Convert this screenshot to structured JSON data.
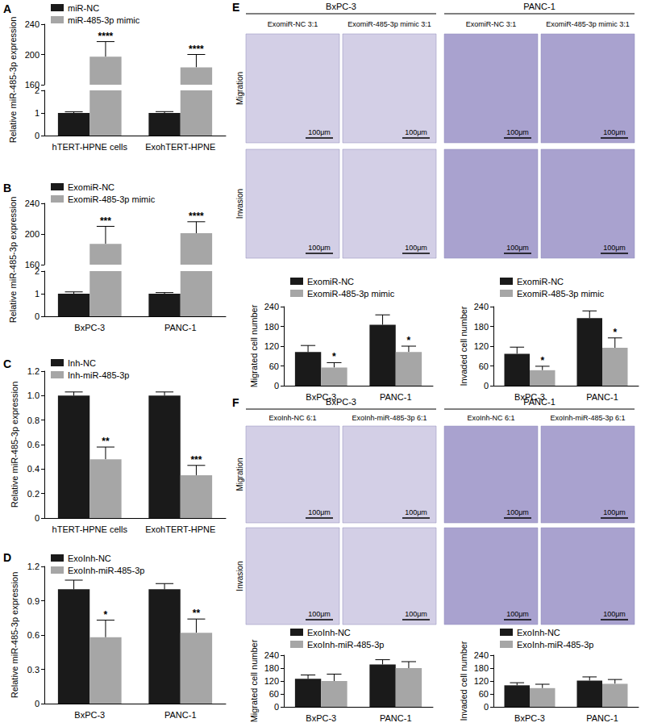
{
  "chart_data": [
    {
      "type": "bar",
      "panel": "A",
      "y_title": "Relative miR-485-3p expression",
      "categories": [
        "hTERT-HPNE cells",
        "ExohTERT-HPNE"
      ],
      "series": [
        {
          "name": "miR-NC",
          "color": "#1a1a1a",
          "values": [
            1.0,
            1.0
          ],
          "errors": [
            0.05,
            0.06
          ]
        },
        {
          "name": "miR-485-3p mimic",
          "color": "#a6a6a6",
          "values": [
            197,
            183
          ],
          "errors": [
            20,
            17
          ],
          "significance": [
            "****",
            "****"
          ]
        }
      ],
      "ylim": [
        0,
        240
      ],
      "ybreak": [
        2,
        160
      ],
      "yticks": [
        0,
        1,
        2,
        160,
        200,
        240
      ],
      "legend": "upper left"
    },
    {
      "type": "bar",
      "panel": "B",
      "y_title": "Relative miR-485-3p expression",
      "categories": [
        "BxPC-3",
        "PANC-1"
      ],
      "series": [
        {
          "name": "ExomiR-NC",
          "color": "#1a1a1a",
          "values": [
            1.0,
            1.0
          ],
          "errors": [
            0.08,
            0.05
          ]
        },
        {
          "name": "ExomiR-485-3p mimic",
          "color": "#a6a6a6",
          "values": [
            187,
            201
          ],
          "errors": [
            23,
            15
          ],
          "significance": [
            "***",
            "****"
          ]
        }
      ],
      "ylim": [
        0,
        240
      ],
      "ybreak": [
        2,
        160
      ],
      "yticks": [
        0,
        1,
        2,
        160,
        200,
        240
      ],
      "legend": "upper left"
    },
    {
      "type": "bar",
      "panel": "C",
      "y_title": "Relative miR-485-3p expression",
      "categories": [
        "hTERT-HPNE cells",
        "ExohTERT-HPNE"
      ],
      "series": [
        {
          "name": "Inh-NC",
          "color": "#1a1a1a",
          "values": [
            1.0,
            1.0
          ],
          "errors": [
            0.03,
            0.03
          ]
        },
        {
          "name": "Inh-miR-485-3p",
          "color": "#a6a6a6",
          "values": [
            0.48,
            0.35
          ],
          "errors": [
            0.1,
            0.08
          ],
          "significance": [
            "**",
            "***"
          ]
        }
      ],
      "ylim": [
        0,
        1.2
      ],
      "yticks": [
        0,
        0.2,
        0.4,
        0.6,
        0.8,
        {
          "value": 1,
          "label": "1.0"
        },
        1.2
      ],
      "legend": "upper left"
    },
    {
      "type": "bar",
      "panel": "D",
      "y_title": "Relative miR-485-3p expression",
      "categories": [
        "BxPC-3",
        "PANC-1"
      ],
      "series": [
        {
          "name": "ExoInh-NC",
          "color": "#1a1a1a",
          "values": [
            1.0,
            1.0
          ],
          "errors": [
            0.08,
            0.05
          ]
        },
        {
          "name": "ExoInh-miR-485-3p",
          "color": "#a6a6a6",
          "values": [
            0.58,
            0.62
          ],
          "errors": [
            0.15,
            0.12
          ],
          "significance": [
            "*",
            "**"
          ]
        }
      ],
      "ylim": [
        0,
        1.2
      ],
      "yticks": [
        0,
        0.3,
        0.6,
        0.9,
        1.2
      ],
      "legend": "upper left"
    },
    {
      "type": "bar",
      "y_title": "Migrated cell number",
      "categories": [
        "BxPC-3",
        "PANC-1"
      ],
      "series": [
        {
          "name": "ExomiR-NC",
          "color": "#1a1a1a",
          "values": [
            102,
            185
          ],
          "errors": [
            20,
            30
          ]
        },
        {
          "name": "ExomiR-485-3p mimic",
          "color": "#a6a6a6",
          "values": [
            55,
            102
          ],
          "errors": [
            15,
            18
          ],
          "significance": [
            "*",
            "*"
          ]
        }
      ],
      "ylim": [
        0,
        240
      ],
      "yticks": [
        0,
        60,
        120,
        180,
        240
      ],
      "legend": "upper left"
    },
    {
      "type": "bar",
      "y_title": "Invaded cell number",
      "categories": [
        "BxPC-3",
        "PANC-1"
      ],
      "series": [
        {
          "name": "ExomiR-NC",
          "color": "#1a1a1a",
          "values": [
            97,
            205
          ],
          "errors": [
            20,
            22
          ]
        },
        {
          "name": "ExomiR-485-3p mimic",
          "color": "#a6a6a6",
          "values": [
            47,
            115
          ],
          "errors": [
            12,
            30
          ],
          "significance": [
            "*",
            "*"
          ]
        }
      ],
      "ylim": [
        0,
        240
      ],
      "yticks": [
        0,
        60,
        120,
        180,
        240
      ],
      "legend": "upper left"
    },
    {
      "type": "bar",
      "y_title": "Migrated cell number",
      "categories": [
        "BxPC-3",
        "PANC-1"
      ],
      "series": [
        {
          "name": "ExoInh-NC",
          "color": "#1a1a1a",
          "values": [
            130,
            197
          ],
          "errors": [
            18,
            22
          ]
        },
        {
          "name": "ExoInh-miR-485-3p",
          "color": "#a6a6a6",
          "values": [
            120,
            180
          ],
          "errors": [
            32,
            30
          ]
        }
      ],
      "ylim": [
        0,
        240
      ],
      "yticks": [
        0,
        60,
        120,
        180,
        240
      ],
      "legend": "upper left"
    },
    {
      "type": "bar",
      "y_title": "Invaded cell number",
      "categories": [
        "BxPC-3",
        "PANC-1"
      ],
      "series": [
        {
          "name": "ExoInh-NC",
          "color": "#1a1a1a",
          "values": [
            100,
            122
          ],
          "errors": [
            12,
            17
          ]
        },
        {
          "name": "ExoInh-miR-485-3p",
          "color": "#a6a6a6",
          "values": [
            87,
            107
          ],
          "errors": [
            18,
            20
          ]
        }
      ],
      "ylim": [
        0,
        240
      ],
      "yticks": [
        0,
        60,
        120,
        180,
        240
      ],
      "legend": "upper left"
    }
  ],
  "image_panels": [
    {
      "panel": "E",
      "rows": [
        "Migration",
        "Invasion"
      ],
      "scale_bar": "100μm",
      "groups": [
        {
          "name": "BxPC-3",
          "columns": [
            "ExomiR-NC 3:1",
            "ExomiR-485-3p mimic 3:1"
          ]
        },
        {
          "name": "PANC-1",
          "columns": [
            "ExomiR-NC 3:1",
            "ExomiR-485-3p mimic 3:1"
          ]
        }
      ]
    },
    {
      "panel": "F",
      "rows": [
        "Migration",
        "Invasion"
      ],
      "scale_bar": "100μm",
      "groups": [
        {
          "name": "BxPC-3",
          "columns": [
            "ExoInh-NC 6:1",
            "ExoInh-miR-485-3p 6:1"
          ]
        },
        {
          "name": "PANC-1",
          "columns": [
            "ExoInh-NC 6:1",
            "ExoInh-miR-485-3p 6:1"
          ]
        }
      ]
    }
  ]
}
